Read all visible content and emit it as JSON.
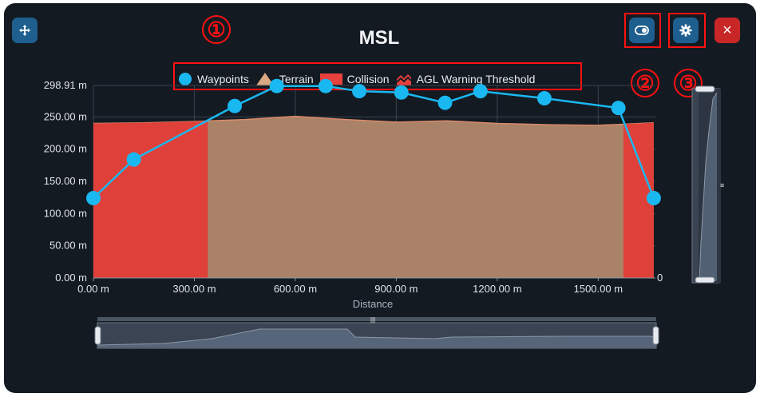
{
  "toolbar": {
    "move_icon": "move-arrows-icon",
    "toggle_icon": "toggle-icon",
    "settings_icon": "gear-icon",
    "close_label": "×"
  },
  "chart_title": "MSL",
  "legend": [
    {
      "label": "Waypoints",
      "shape": "circle",
      "color": "#1ab8f0"
    },
    {
      "label": "Terrain",
      "shape": "triangle",
      "color": "#d9a882"
    },
    {
      "label": "Collision",
      "shape": "rect",
      "color": "#e8403c"
    },
    {
      "label": "AGL Warning Threshold",
      "shape": "zigzag",
      "color": "#e8403c"
    }
  ],
  "annotations": [
    "①",
    "②",
    "③"
  ],
  "colors": {
    "panel": "#131a22",
    "accent": "#1e5f8f",
    "close": "#c92727",
    "waypoint": "#1ab8f0",
    "terrain": "#a98268",
    "collision": "#e0403a"
  },
  "chart_data": {
    "type": "line",
    "xlabel": "Distance",
    "ylabel": "",
    "xlim": [
      0,
      1670
    ],
    "ylim": [
      0,
      298.91
    ],
    "x_ticks": [
      0,
      300,
      600,
      900,
      1200,
      1500
    ],
    "x_tick_labels": [
      "0.00 m",
      "300.00 m",
      "600.00 m",
      "900.00 m",
      "1200.00 m",
      "1500.00 m"
    ],
    "y_ticks": [
      0,
      50,
      100,
      150,
      200,
      250,
      298.91
    ],
    "y_tick_labels": [
      "0.00 m",
      "50.00 m",
      "100.00 m",
      "150.00 m",
      "200.00 m",
      "250.00 m",
      "298.91 m"
    ],
    "right_axis_label": "0",
    "grid": true,
    "series": [
      {
        "name": "Waypoints",
        "x": [
          0,
          120,
          420,
          545,
          690,
          790,
          915,
          1045,
          1150,
          1340,
          1560,
          1665
        ],
        "y": [
          124,
          184,
          267,
          298,
          298,
          290,
          288,
          272,
          290,
          279,
          264,
          124
        ]
      },
      {
        "name": "Terrain",
        "x": [
          0,
          150,
          300,
          450,
          600,
          750,
          900,
          1050,
          1200,
          1350,
          1500,
          1665
        ],
        "y": [
          240,
          241,
          243,
          246,
          251,
          246,
          242,
          244,
          240,
          238,
          237,
          241
        ]
      },
      {
        "name": "Collision",
        "ranges": [
          [
            0,
            340
          ],
          [
            1575,
            1665
          ]
        ]
      }
    ]
  }
}
